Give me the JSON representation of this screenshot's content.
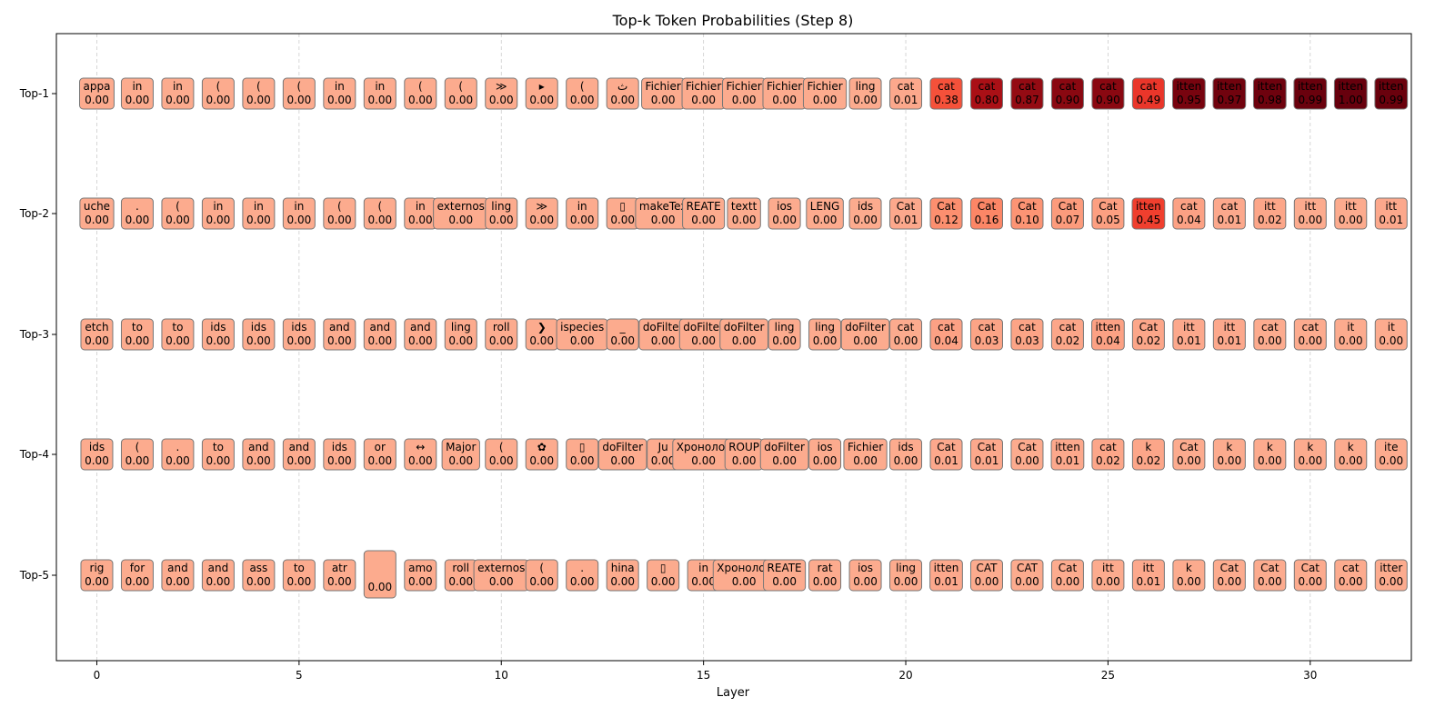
{
  "chart_data": {
    "type": "heatmap",
    "title": "Top-k Token Probabilities (Step 8)",
    "xlabel": "Layer",
    "ylabel": "",
    "rows": [
      "Top-1",
      "Top-2",
      "Top-3",
      "Top-4",
      "Top-5"
    ],
    "x_ticks": [
      0,
      5,
      10,
      15,
      20,
      25,
      30
    ],
    "xlim": [
      -1,
      32.5
    ],
    "grid": "vertical dashed at x ticks",
    "colormap": "Reds",
    "layers": [
      0,
      1,
      2,
      3,
      4,
      5,
      6,
      7,
      8,
      9,
      10,
      11,
      12,
      13,
      14,
      15,
      16,
      17,
      18,
      19,
      20,
      21,
      22,
      23,
      24,
      25,
      26,
      27,
      28,
      29,
      30,
      31,
      32
    ],
    "tokens": [
      [
        "appa",
        "in",
        "in",
        "(",
        "(",
        "(",
        "in",
        "in",
        "(",
        "(",
        "≫",
        "▸",
        "(",
        "ث",
        "Fichier",
        "Fichier",
        "Fichier",
        "Fichier",
        "Fichier",
        "ling",
        "cat",
        "cat",
        "cat",
        "cat",
        "cat",
        "cat",
        "cat",
        "itten",
        "itten",
        "itten",
        "itten",
        "itten",
        "itten"
      ],
      [
        "uche",
        ".",
        "(",
        "in",
        "in",
        "in",
        "(",
        "(",
        "in",
        "externos",
        "ling",
        "≫",
        "in",
        "▯",
        "makeTex",
        "REATE",
        "textt",
        "ios",
        "LENG",
        "ids",
        "Cat",
        "Cat",
        "Cat",
        "Cat",
        "Cat",
        "Cat",
        "itten",
        "cat",
        "cat",
        "itt",
        "itt",
        "itt",
        "itt"
      ],
      [
        "etch",
        "to",
        "to",
        "ids",
        "ids",
        "ids",
        "and",
        "and",
        "and",
        "ling",
        "roll",
        "❯",
        "ispecies",
        "_",
        "doFilter",
        "doFilter",
        "doFilter",
        "ling",
        "ling",
        "doFilter",
        "cat",
        "cat",
        "cat",
        "cat",
        "cat",
        "itten",
        "Cat",
        "itt",
        "itt",
        "cat",
        "cat",
        "it",
        "it"
      ],
      [
        "ids",
        "(",
        ".",
        "to",
        "and",
        "and",
        "ids",
        "or",
        "↔",
        "Major",
        "(",
        "✿",
        "▯",
        "doFilter",
        "Ju",
        "Хронолог",
        "ROUP",
        "doFilter",
        "ios",
        "Fichier",
        "ids",
        "Cat",
        "Cat",
        "Cat",
        "itten",
        "cat",
        "k",
        "Cat",
        "k",
        "k",
        "k",
        "k",
        "ite"
      ],
      [
        "rig",
        "for",
        "and",
        "and",
        "ass",
        "to",
        "atr",
        "",
        "amo",
        "roll",
        "externos",
        "(",
        ".",
        "hina",
        "▯",
        "in",
        "Хронолог",
        "REATE",
        "rat",
        "ios",
        "ling",
        "itten",
        "CAT",
        "CAT",
        "Cat",
        "itt",
        "itt",
        "k",
        "Cat",
        "Cat",
        "Cat",
        "cat",
        "itter"
      ]
    ],
    "probabilities": [
      [
        0.0,
        0.0,
        0.0,
        0.0,
        0.0,
        0.0,
        0.0,
        0.0,
        0.0,
        0.0,
        0.0,
        0.0,
        0.0,
        0.0,
        0.0,
        0.0,
        0.0,
        0.0,
        0.0,
        0.0,
        0.01,
        0.38,
        0.8,
        0.87,
        0.9,
        0.9,
        0.49,
        0.95,
        0.97,
        0.98,
        0.99,
        1.0,
        0.99
      ],
      [
        0.0,
        0.0,
        0.0,
        0.0,
        0.0,
        0.0,
        0.0,
        0.0,
        0.0,
        0.0,
        0.0,
        0.0,
        0.0,
        0.0,
        0.0,
        0.0,
        0.0,
        0.0,
        0.0,
        0.0,
        0.01,
        0.12,
        0.16,
        0.1,
        0.07,
        0.05,
        0.45,
        0.04,
        0.01,
        0.02,
        0.0,
        0.0,
        0.01
      ],
      [
        0.0,
        0.0,
        0.0,
        0.0,
        0.0,
        0.0,
        0.0,
        0.0,
        0.0,
        0.0,
        0.0,
        0.0,
        0.0,
        0.0,
        0.0,
        0.0,
        0.0,
        0.0,
        0.0,
        0.0,
        0.0,
        0.04,
        0.03,
        0.03,
        0.02,
        0.04,
        0.02,
        0.01,
        0.01,
        0.0,
        0.0,
        0.0,
        0.0
      ],
      [
        0.0,
        0.0,
        0.0,
        0.0,
        0.0,
        0.0,
        0.0,
        0.0,
        0.0,
        0.0,
        0.0,
        0.0,
        0.0,
        0.0,
        0.0,
        0.0,
        0.0,
        0.0,
        0.0,
        0.0,
        0.0,
        0.01,
        0.01,
        0.0,
        0.01,
        0.02,
        0.02,
        0.0,
        0.0,
        0.0,
        0.0,
        0.0,
        0.0
      ],
      [
        0.0,
        0.0,
        0.0,
        0.0,
        0.0,
        0.0,
        0.0,
        0.0,
        0.0,
        0.0,
        0.0,
        0.0,
        0.0,
        0.0,
        0.0,
        0.0,
        0.0,
        0.0,
        0.0,
        0.0,
        0.0,
        0.01,
        0.0,
        0.0,
        0.0,
        0.0,
        0.01,
        0.0,
        0.0,
        0.0,
        0.0,
        0.0,
        0.0
      ]
    ]
  }
}
